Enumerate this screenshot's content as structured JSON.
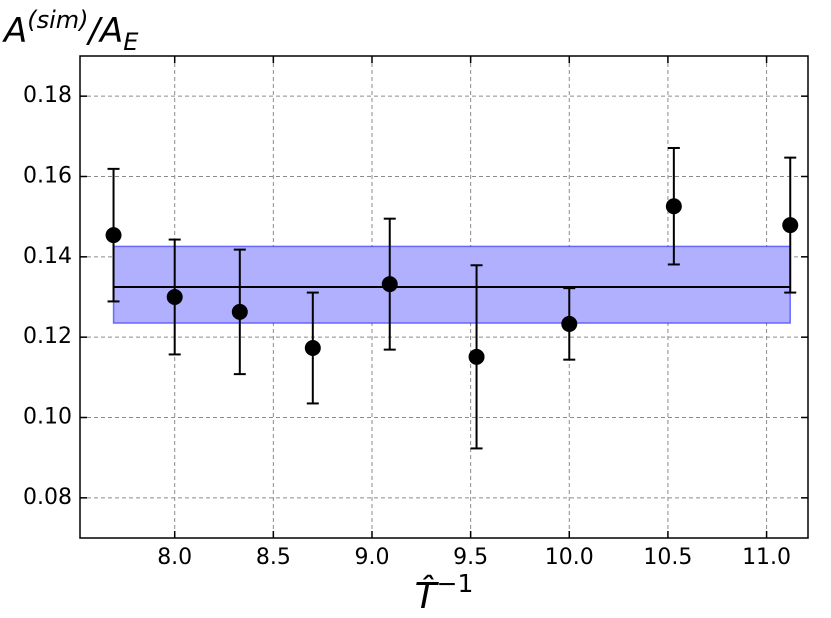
{
  "chart_data": {
    "type": "scatter",
    "ylabel": {
      "base": "A",
      "sup": "(sim)",
      "mid": "/A",
      "sub": "E"
    },
    "xlabel": {
      "base": "T̂",
      "sup": "−1"
    },
    "x": [
      7.69,
      8.0,
      8.33,
      8.7,
      9.09,
      9.53,
      10.0,
      10.53,
      11.12
    ],
    "series": [
      {
        "color": "#000000",
        "values": [
          0.1454,
          0.13,
          0.1263,
          0.1173,
          0.1332,
          0.1151,
          0.1233,
          0.1526,
          0.1479
        ],
        "errors": [
          0.0165,
          0.0143,
          0.0155,
          0.0138,
          0.0163,
          0.0228,
          0.0089,
          0.0145,
          0.0168
        ]
      }
    ],
    "fit": {
      "value": 0.1325,
      "band": [
        0.1235,
        0.1426
      ],
      "color": "#0000ff",
      "band_color": "#b0b0ff"
    },
    "xlim": [
      7.52,
      11.21
    ],
    "ylim": [
      0.07,
      0.19
    ],
    "xticks": [
      {
        "value": 8,
        "label": "8.0"
      },
      {
        "value": 8.5,
        "label": "8.5"
      },
      {
        "value": 9,
        "label": "9.0"
      },
      {
        "value": 9.5,
        "label": "9.5"
      },
      {
        "value": 10,
        "label": "10.0"
      },
      {
        "value": 10.5,
        "label": "10.5"
      },
      {
        "value": 11,
        "label": "11.0"
      }
    ],
    "yticks": [
      0.08,
      {
        "value": 0.1,
        "label": "0.10"
      },
      0.12,
      0.14,
      0.16,
      0.18
    ],
    "grid": true
  }
}
